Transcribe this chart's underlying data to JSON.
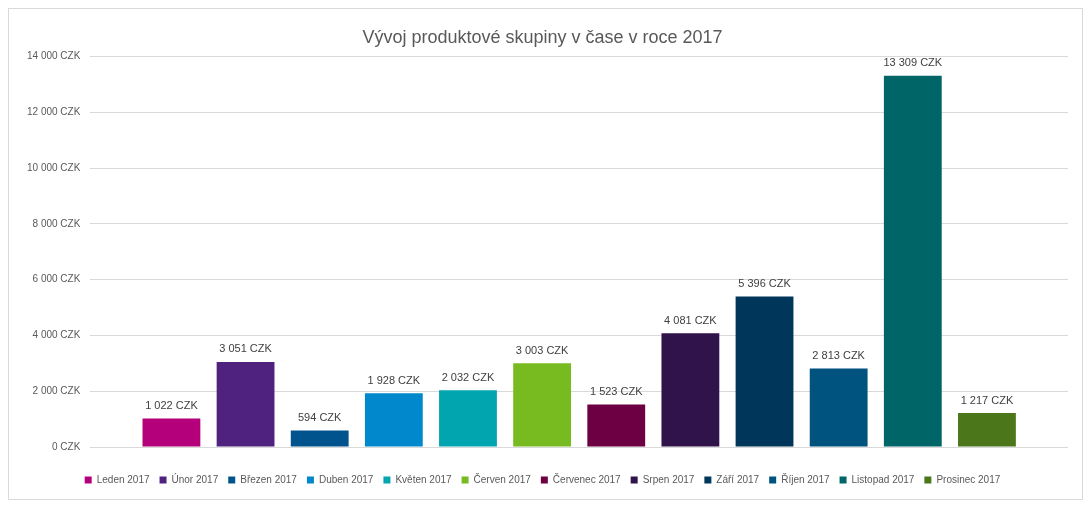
{
  "chart_data": {
    "type": "bar",
    "title": "Vývoj produktové skupiny v čase v roce 2017",
    "categories": [
      null
    ],
    "series": [
      {
        "name": "Leden 2017",
        "color": "#b5007c",
        "values": [
          1022
        ],
        "value_labels": [
          "1 022 CZK"
        ]
      },
      {
        "name": "Únor 2017",
        "color": "#50227f",
        "values": [
          3051
        ],
        "value_labels": [
          "3 051 CZK"
        ]
      },
      {
        "name": "Březen 2017",
        "color": "#00538d",
        "values": [
          594
        ],
        "value_labels": [
          "594 CZK"
        ]
      },
      {
        "name": "Duben 2017",
        "color": "#0087cc",
        "values": [
          1928
        ],
        "value_labels": [
          "1 928 CZK"
        ]
      },
      {
        "name": "Květen 2017",
        "color": "#00a5b0",
        "values": [
          2032
        ],
        "value_labels": [
          "2 032 CZK"
        ]
      },
      {
        "name": "Červen 2017",
        "color": "#78bb21",
        "values": [
          3003
        ],
        "value_labels": [
          "3 003 CZK"
        ]
      },
      {
        "name": "Červenec 2017",
        "color": "#6d0043",
        "values": [
          1523
        ],
        "value_labels": [
          "1 523 CZK"
        ]
      },
      {
        "name": "Srpen 2017",
        "color": "#31134b",
        "values": [
          4081
        ],
        "value_labels": [
          "4 081 CZK"
        ]
      },
      {
        "name": "Září 2017",
        "color": "#003659",
        "values": [
          5396
        ],
        "value_labels": [
          "5 396 CZK"
        ]
      },
      {
        "name": "Říjen 2017",
        "color": "#00537f",
        "values": [
          2813
        ],
        "value_labels": [
          "2 813 CZK"
        ]
      },
      {
        "name": "Listopad 2017",
        "color": "#006567",
        "values": [
          13309
        ],
        "value_labels": [
          "13 309 CZK"
        ]
      },
      {
        "name": "Prosinec 2017",
        "color": "#4b771a",
        "values": [
          1217
        ],
        "value_labels": [
          "1 217 CZK"
        ]
      }
    ],
    "ylim": [
      0,
      14000
    ],
    "yticks": [
      {
        "value": 0,
        "label": "0 CZK"
      },
      {
        "value": 2000,
        "label": "2 000 CZK"
      },
      {
        "value": 4000,
        "label": "4 000 CZK"
      },
      {
        "value": 6000,
        "label": "6 000 CZK"
      },
      {
        "value": 8000,
        "label": "8 000 CZK"
      },
      {
        "value": 10000,
        "label": "10 000 CZK"
      },
      {
        "value": 12000,
        "label": "12 000 CZK"
      },
      {
        "value": 14000,
        "label": "14 000 CZK"
      }
    ],
    "grid": "y",
    "legend": "bottom"
  }
}
